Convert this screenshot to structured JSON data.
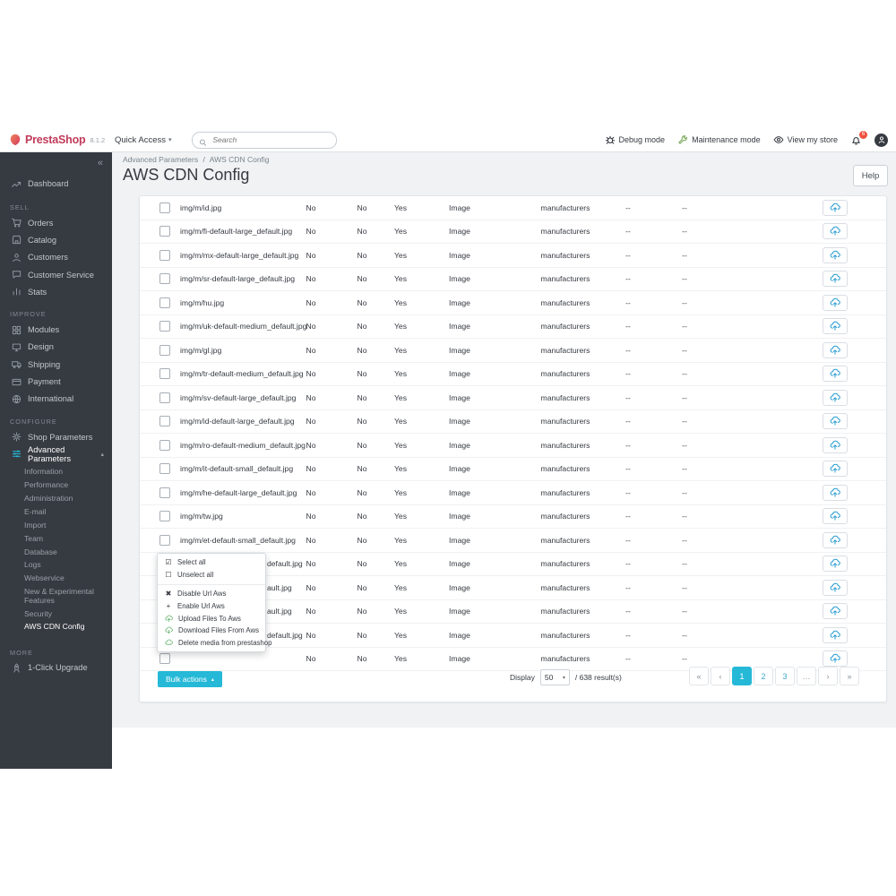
{
  "header": {
    "brand": "PrestaShop",
    "version": "8.1.2",
    "quick_access": "Quick Access",
    "quick_access_caret": "▾",
    "search_placeholder": "Search",
    "debug_mode": "Debug mode",
    "maintenance_mode": "Maintenance mode",
    "view_store": "View my store",
    "notification_count": "6"
  },
  "breadcrumb": {
    "parent": "Advanced Parameters",
    "separator": "/",
    "current": "AWS CDN Config"
  },
  "page": {
    "title": "AWS CDN Config",
    "help_label": "Help"
  },
  "sidebar": {
    "collapse_glyph": "«",
    "dashboard": {
      "icon": "trend",
      "label": "Dashboard"
    },
    "sections": [
      {
        "label": "SELL",
        "items": [
          {
            "icon": "cart",
            "label": "Orders"
          },
          {
            "icon": "store",
            "label": "Catalog"
          },
          {
            "icon": "person",
            "label": "Customers"
          },
          {
            "icon": "chat",
            "label": "Customer Service"
          },
          {
            "icon": "stats",
            "label": "Stats"
          }
        ]
      },
      {
        "label": "IMPROVE",
        "items": [
          {
            "icon": "modules",
            "label": "Modules"
          },
          {
            "icon": "design",
            "label": "Design"
          },
          {
            "icon": "truck",
            "label": "Shipping"
          },
          {
            "icon": "card",
            "label": "Payment"
          },
          {
            "icon": "globe",
            "label": "International"
          }
        ]
      },
      {
        "label": "CONFIGURE",
        "items": [
          {
            "icon": "gear",
            "label": "Shop Parameters"
          },
          {
            "icon": "sliders",
            "label": "Advanced Parameters",
            "active": true,
            "expanded": true,
            "chevron": "▴",
            "submenu": [
              "Information",
              "Performance",
              "Administration",
              "E-mail",
              "Import",
              "Team",
              "Database",
              "Logs",
              "Webservice",
              "New & Experimental Features",
              "Security",
              "AWS CDN Config"
            ],
            "active_sub": "AWS CDN Config"
          }
        ]
      },
      {
        "label": "MORE",
        "items": [
          {
            "icon": "rocket",
            "label": "1-Click Upgrade"
          }
        ]
      }
    ]
  },
  "table": {
    "rows": [
      {
        "file": "img/m/id.jpg",
        "obscured": false,
        "cells": [
          "No",
          "No",
          "Yes",
          "Image",
          "manufacturers",
          "--",
          "--"
        ]
      },
      {
        "file": "img/m/fi-default-large_default.jpg",
        "obscured": false,
        "cells": [
          "No",
          "No",
          "Yes",
          "Image",
          "manufacturers",
          "--",
          "--"
        ]
      },
      {
        "file": "img/m/mx-default-large_default.jpg",
        "obscured": false,
        "cells": [
          "No",
          "No",
          "Yes",
          "Image",
          "manufacturers",
          "--",
          "--"
        ]
      },
      {
        "file": "img/m/sr-default-large_default.jpg",
        "obscured": false,
        "cells": [
          "No",
          "No",
          "Yes",
          "Image",
          "manufacturers",
          "--",
          "--"
        ]
      },
      {
        "file": "img/m/hu.jpg",
        "obscured": false,
        "cells": [
          "No",
          "No",
          "Yes",
          "Image",
          "manufacturers",
          "--",
          "--"
        ]
      },
      {
        "file": "img/m/uk-default-medium_default.jpg",
        "obscured": false,
        "cells": [
          "No",
          "No",
          "Yes",
          "Image",
          "manufacturers",
          "--",
          "--"
        ]
      },
      {
        "file": "img/m/gl.jpg",
        "obscured": false,
        "cells": [
          "No",
          "No",
          "Yes",
          "Image",
          "manufacturers",
          "--",
          "--"
        ]
      },
      {
        "file": "img/m/tr-default-medium_default.jpg",
        "obscured": false,
        "cells": [
          "No",
          "No",
          "Yes",
          "Image",
          "manufacturers",
          "--",
          "--"
        ]
      },
      {
        "file": "img/m/sv-default-large_default.jpg",
        "obscured": false,
        "cells": [
          "No",
          "No",
          "Yes",
          "Image",
          "manufacturers",
          "--",
          "--"
        ]
      },
      {
        "file": "img/m/id-default-large_default.jpg",
        "obscured": false,
        "cells": [
          "No",
          "No",
          "Yes",
          "Image",
          "manufacturers",
          "--",
          "--"
        ]
      },
      {
        "file": "img/m/ro-default-medium_default.jpg",
        "obscured": false,
        "cells": [
          "No",
          "No",
          "Yes",
          "Image",
          "manufacturers",
          "--",
          "--"
        ]
      },
      {
        "file": "img/m/it-default-small_default.jpg",
        "obscured": false,
        "cells": [
          "No",
          "No",
          "Yes",
          "Image",
          "manufacturers",
          "--",
          "--"
        ]
      },
      {
        "file": "img/m/he-default-large_default.jpg",
        "obscured": false,
        "cells": [
          "No",
          "No",
          "Yes",
          "Image",
          "manufacturers",
          "--",
          "--"
        ]
      },
      {
        "file": "img/m/tw.jpg",
        "obscured": false,
        "cells": [
          "No",
          "No",
          "Yes",
          "Image",
          "manufacturers",
          "--",
          "--"
        ]
      },
      {
        "file": "img/m/et-default-small_default.jpg",
        "obscured": false,
        "cells": [
          "No",
          "No",
          "Yes",
          "Image",
          "manufacturers",
          "--",
          "--"
        ]
      },
      {
        "file": "default.jpg",
        "obscured": true,
        "cells": [
          "No",
          "No",
          "Yes",
          "Image",
          "manufacturers",
          "--",
          "--"
        ]
      },
      {
        "file": "ault.jpg",
        "obscured": true,
        "cells": [
          "No",
          "No",
          "Yes",
          "Image",
          "manufacturers",
          "--",
          "--"
        ]
      },
      {
        "file": "ault.jpg",
        "obscured": true,
        "cells": [
          "No",
          "No",
          "Yes",
          "Image",
          "manufacturers",
          "--",
          "--"
        ]
      },
      {
        "file": "default.jpg",
        "obscured": true,
        "cells": [
          "No",
          "No",
          "Yes",
          "Image",
          "manufacturers",
          "--",
          "--"
        ]
      },
      {
        "file": "",
        "obscured": true,
        "cells": [
          "No",
          "No",
          "Yes",
          "Image",
          "manufacturers",
          "--",
          "--"
        ]
      }
    ]
  },
  "bulk_menu": {
    "items": [
      {
        "icon": "checkbox-checked",
        "label": "Select all"
      },
      {
        "icon": "checkbox-unchecked",
        "label": "Unselect all"
      },
      {
        "divider": true
      },
      {
        "icon": "x-mark",
        "label": "Disable Url Aws"
      },
      {
        "icon": "plus",
        "label": "Enable Url Aws"
      },
      {
        "icon": "cloud-up",
        "label": "Upload Files To Aws"
      },
      {
        "icon": "cloud-down",
        "label": "Download Files From Aws"
      },
      {
        "icon": "cloud",
        "label": "Delete media from prestashop"
      }
    ]
  },
  "footer": {
    "bulk_button": "Bulk actions",
    "bulk_caret": "▴",
    "display_label": "Display",
    "page_size": "50",
    "page_size_caret": "▾",
    "results_text": "/ 638 result(s)",
    "pages": [
      {
        "label": "«",
        "nav": true
      },
      {
        "label": "‹",
        "nav": true
      },
      {
        "label": "1",
        "active": true
      },
      {
        "label": "2"
      },
      {
        "label": "3"
      },
      {
        "label": "…",
        "nav": true
      },
      {
        "label": "›",
        "nav": true
      },
      {
        "label": "»",
        "nav": true
      }
    ]
  },
  "colors": {
    "accent": "#25b9d7",
    "brand_red": "#c13a59",
    "badge_red": "#f0513d",
    "menu_cloud_green": "#67b76f",
    "row_cloud_blue": "#2f9fd3"
  }
}
